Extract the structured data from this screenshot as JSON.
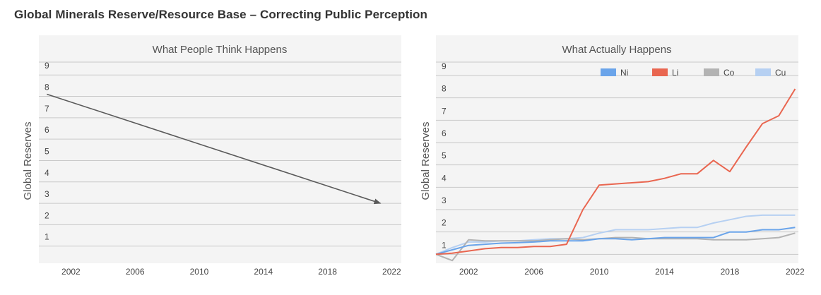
{
  "page": {
    "title": "Global Minerals Reserve/Resource Base – Correcting Public Perception"
  },
  "colors": {
    "panel_bg": "#f4f4f4",
    "gridline": "#c9c9c9",
    "arrow": "#5a5a5a",
    "Ni": "#6aa4ea",
    "Li": "#e96650",
    "Co": "#b3b3b3",
    "Cu": "#b6d0f2"
  },
  "chart_data": [
    {
      "type": "line",
      "title": "What People Think Happens",
      "ylabel": "Global Reserves",
      "xlabel": "",
      "xlim": [
        2000,
        2022.6
      ],
      "ylim": [
        0.2,
        9.6
      ],
      "xticks": [
        2002,
        2006,
        2010,
        2014,
        2018,
        2022
      ],
      "yticks": [
        1,
        2,
        3,
        4,
        5,
        6,
        7,
        8,
        9
      ],
      "grid": true,
      "series": [
        {
          "x": [
            2000.5,
            2021.3
          ],
          "y": [
            8.1,
            3.0
          ],
          "arrow": true
        }
      ]
    },
    {
      "type": "line",
      "title": "What Actually Happens",
      "ylabel": "Global Reserves",
      "xlabel": "",
      "xlim": [
        2000,
        2022.2
      ],
      "ylim": [
        0.6,
        9.6
      ],
      "xticks": [
        2002,
        2006,
        2010,
        2014,
        2018,
        2022
      ],
      "yticks": [
        1,
        2,
        3,
        4,
        5,
        6,
        7,
        8,
        9
      ],
      "grid": true,
      "legend": "top-right",
      "x": [
        2000,
        2001,
        2002,
        2003,
        2004,
        2005,
        2006,
        2007,
        2008,
        2009,
        2010,
        2011,
        2012,
        2013,
        2014,
        2015,
        2016,
        2017,
        2018,
        2019,
        2020,
        2021,
        2022
      ],
      "series": [
        {
          "name": "Ni",
          "values": [
            1.0,
            1.2,
            1.4,
            1.45,
            1.5,
            1.52,
            1.55,
            1.6,
            1.6,
            1.6,
            1.7,
            1.7,
            1.65,
            1.7,
            1.75,
            1.75,
            1.75,
            1.75,
            2.0,
            2.0,
            2.1,
            2.1,
            2.2
          ]
        },
        {
          "name": "Li",
          "values": [
            1.0,
            1.05,
            1.15,
            1.25,
            1.3,
            1.3,
            1.35,
            1.35,
            1.45,
            3.0,
            4.1,
            4.15,
            4.2,
            4.25,
            4.4,
            4.6,
            4.6,
            5.2,
            4.7,
            5.8,
            6.85,
            7.2,
            8.4
          ]
        },
        {
          "name": "Co",
          "values": [
            1.0,
            0.72,
            1.65,
            1.6,
            1.6,
            1.6,
            1.6,
            1.65,
            1.7,
            1.65,
            1.7,
            1.75,
            1.75,
            1.7,
            1.7,
            1.7,
            1.7,
            1.65,
            1.65,
            1.65,
            1.7,
            1.75,
            1.95
          ]
        },
        {
          "name": "Cu",
          "values": [
            1.0,
            1.3,
            1.55,
            1.55,
            1.6,
            1.6,
            1.65,
            1.7,
            1.7,
            1.75,
            1.95,
            2.1,
            2.1,
            2.1,
            2.15,
            2.2,
            2.2,
            2.4,
            2.55,
            2.7,
            2.75,
            2.75,
            2.75
          ]
        }
      ]
    }
  ]
}
